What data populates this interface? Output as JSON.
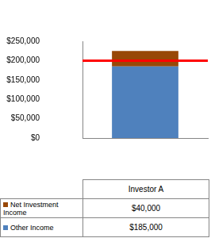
{
  "chart_data": {
    "type": "bar",
    "stacked": true,
    "grid": false,
    "categories": [
      "Investor A"
    ],
    "series": [
      {
        "name": "Net Investment Income",
        "color": "#984807",
        "values": [
          40000
        ],
        "value_labels": [
          "$40,000"
        ]
      },
      {
        "name": "Other Income",
        "color": "#4f81bd",
        "values": [
          185000
        ],
        "value_labels": [
          "$185,000"
        ]
      }
    ],
    "ylim": [
      0,
      250000
    ],
    "yticks": [
      {
        "value": 0,
        "label": "$0"
      },
      {
        "value": 50000,
        "label": "$50,000"
      },
      {
        "value": 100000,
        "label": "$100,000"
      },
      {
        "value": 150000,
        "label": "$150,000"
      },
      {
        "value": 200000,
        "label": "$200,000"
      },
      {
        "value": 250000,
        "label": "$250,000"
      }
    ],
    "reference_line": {
      "value": 200000,
      "color": "#ff0000"
    }
  }
}
